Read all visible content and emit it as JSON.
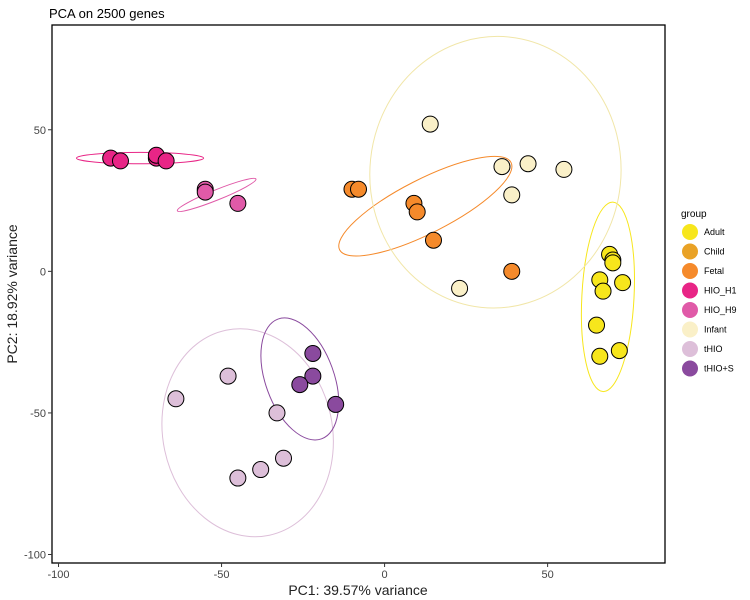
{
  "chart_data": {
    "type": "scatter",
    "title": "PCA on 2500 genes",
    "xlabel": "PC1: 39.57% variance",
    "ylabel": "PC2: 18.92% variance",
    "xlim": [
      -102,
      86
    ],
    "ylim": [
      -103,
      87
    ],
    "x_ticks": [
      -100,
      -50,
      0,
      50
    ],
    "y_ticks": [
      -100,
      -50,
      0,
      50
    ],
    "grid": false,
    "legend_title": "group",
    "legend_position": "right",
    "series": [
      {
        "name": "Adult",
        "color": "#F7E61C",
        "points": [
          [
            69,
            6
          ],
          [
            70,
            4
          ],
          [
            70,
            3
          ],
          [
            66,
            -3
          ],
          [
            67,
            -7
          ],
          [
            73,
            -4
          ],
          [
            65,
            -19
          ],
          [
            66,
            -30
          ],
          [
            72,
            -28
          ]
        ],
        "ellipse": {
          "cx": 68.5,
          "cy": -9,
          "rx": 8,
          "ry": 33.5,
          "angle": 3
        }
      },
      {
        "name": "Child",
        "color": "#E9A226",
        "points": [],
        "ellipse": null
      },
      {
        "name": "Fetal",
        "color": "#F58A2B",
        "points": [
          [
            -10,
            29
          ],
          [
            -8,
            29
          ],
          [
            9,
            24
          ],
          [
            10,
            21
          ],
          [
            15,
            11
          ],
          [
            39,
            0
          ]
        ],
        "ellipse": {
          "cx": 12.5,
          "cy": 23,
          "rx": 29.5,
          "ry": 9.5,
          "angle": -27
        }
      },
      {
        "name": "HIO_H1",
        "color": "#E82586",
        "points": [
          [
            -84,
            40
          ],
          [
            -81,
            39
          ],
          [
            -70,
            40
          ],
          [
            -70,
            41
          ],
          [
            -67,
            39
          ]
        ],
        "ellipse": {
          "cx": -75,
          "cy": 40,
          "rx": 19.5,
          "ry": 2,
          "angle": 0
        }
      },
      {
        "name": "HIO_H9",
        "color": "#E05AA8",
        "points": [
          [
            -55,
            29
          ],
          [
            -55,
            28
          ],
          [
            -45,
            24
          ]
        ],
        "ellipse": {
          "cx": -51.5,
          "cy": 27,
          "rx": 13,
          "ry": 1.8,
          "angle": -22
        }
      },
      {
        "name": "Infant",
        "color": "#FAF0C8",
        "points": [
          [
            14,
            52
          ],
          [
            36,
            37
          ],
          [
            44,
            38
          ],
          [
            55,
            36
          ],
          [
            39,
            27
          ],
          [
            23,
            -6
          ]
        ],
        "ellipse": {
          "cx": 34,
          "cy": 35,
          "rx": 38.5,
          "ry": 48,
          "angle": 6
        }
      },
      {
        "name": "tHIO",
        "color": "#DDBFD9",
        "points": [
          [
            -64,
            -45
          ],
          [
            -48,
            -37
          ],
          [
            -33,
            -50
          ],
          [
            -31,
            -66
          ],
          [
            -38,
            -70
          ],
          [
            -45,
            -73
          ]
        ],
        "ellipse": {
          "cx": -42,
          "cy": -57,
          "rx": 26,
          "ry": 37,
          "angle": -12
        }
      },
      {
        "name": "tHIO+S",
        "color": "#8A4A9E",
        "points": [
          [
            -22,
            -29
          ],
          [
            -22,
            -37
          ],
          [
            -26,
            -40
          ],
          [
            -15,
            -47
          ]
        ],
        "ellipse": {
          "cx": -26,
          "cy": -38,
          "rx": 10.5,
          "ry": 22.5,
          "angle": -20
        }
      }
    ]
  }
}
